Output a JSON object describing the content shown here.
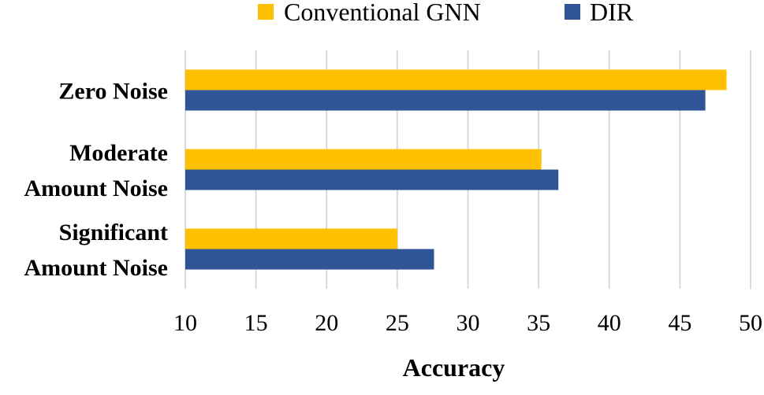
{
  "chart_data": {
    "type": "bar",
    "orientation": "horizontal",
    "categories": [
      [
        "Zero Noise"
      ],
      [
        "Moderate",
        "Amount Noise"
      ],
      [
        "Significant",
        "Amount Noise"
      ]
    ],
    "series": [
      {
        "name": "Conventional GNN",
        "color": "#FFC000",
        "values": [
          48.3,
          35.2,
          25.0
        ]
      },
      {
        "name": "DIR",
        "color": "#2F5597",
        "values": [
          46.8,
          36.4,
          27.6
        ]
      }
    ],
    "xlabel": "Accuracy",
    "ylabel": "",
    "xlim": [
      10,
      50
    ],
    "xticks": [
      10,
      15,
      20,
      25,
      30,
      35,
      40,
      45,
      50
    ],
    "grid": true,
    "grid_color": "#D9D9D9",
    "legend_position": "top"
  }
}
